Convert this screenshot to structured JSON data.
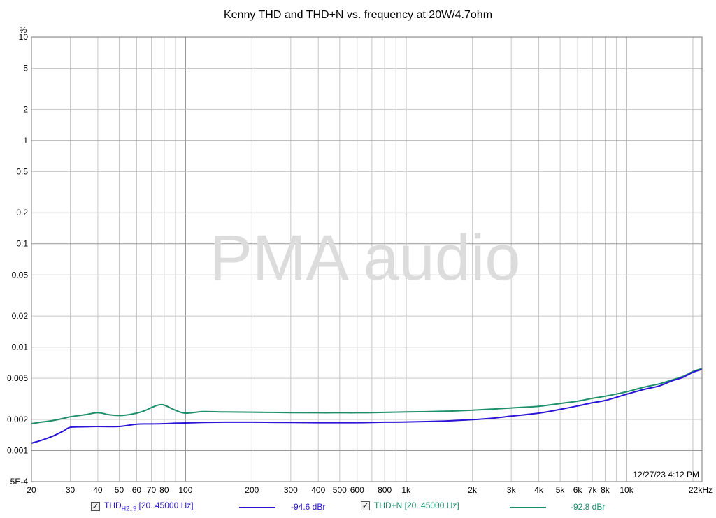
{
  "chart_data": {
    "type": "line",
    "title": "Kenny THD and THD+N vs. frequency at 20W/4.7ohm",
    "ylabel": "%",
    "xunit": "kHz",
    "xscale": "log",
    "yscale": "log",
    "xlim": [
      20,
      22000
    ],
    "ylim": [
      0.0005,
      10
    ],
    "grid": true,
    "xticks": [
      {
        "v": 20,
        "label": "20"
      },
      {
        "v": 30,
        "label": "30"
      },
      {
        "v": 40,
        "label": "40"
      },
      {
        "v": 50,
        "label": "50"
      },
      {
        "v": 60,
        "label": "60"
      },
      {
        "v": 70,
        "label": "70"
      },
      {
        "v": 80,
        "label": "80"
      },
      {
        "v": 100,
        "label": "100"
      },
      {
        "v": 200,
        "label": "200"
      },
      {
        "v": 300,
        "label": "300"
      },
      {
        "v": 400,
        "label": "400"
      },
      {
        "v": 500,
        "label": "500"
      },
      {
        "v": 600,
        "label": "600"
      },
      {
        "v": 800,
        "label": "800"
      },
      {
        "v": 1000,
        "label": "1k"
      },
      {
        "v": 2000,
        "label": "2k"
      },
      {
        "v": 3000,
        "label": "3k"
      },
      {
        "v": 4000,
        "label": "4k"
      },
      {
        "v": 5000,
        "label": "5k"
      },
      {
        "v": 6000,
        "label": "6k"
      },
      {
        "v": 7000,
        "label": "7k"
      },
      {
        "v": 8000,
        "label": "8k"
      },
      {
        "v": 10000,
        "label": "10k"
      },
      {
        "v": 22000,
        "label": "22kHz"
      }
    ],
    "yticks": [
      {
        "v": 10,
        "label": "10"
      },
      {
        "v": 5,
        "label": "5"
      },
      {
        "v": 2,
        "label": "2"
      },
      {
        "v": 1,
        "label": "1"
      },
      {
        "v": 0.5,
        "label": "0.5"
      },
      {
        "v": 0.2,
        "label": "0.2"
      },
      {
        "v": 0.1,
        "label": "0.1"
      },
      {
        "v": 0.05,
        "label": "0.05"
      },
      {
        "v": 0.02,
        "label": "0.02"
      },
      {
        "v": 0.01,
        "label": "0.01"
      },
      {
        "v": 0.005,
        "label": "0.005"
      },
      {
        "v": 0.002,
        "label": "0.002"
      },
      {
        "v": 0.001,
        "label": "0.001"
      },
      {
        "v": 0.0005,
        "label": "5E-4"
      }
    ],
    "series": [
      {
        "name": "THD H2..9 [20..45000 Hz]",
        "color": "#2a14d6",
        "x": [
          20,
          22,
          25,
          28,
          30,
          35,
          40,
          50,
          60,
          70,
          80,
          90,
          100,
          120,
          150,
          200,
          300,
          400,
          500,
          600,
          700,
          800,
          1000,
          1500,
          2000,
          2500,
          3000,
          4000,
          5000,
          6000,
          7000,
          8000,
          10000,
          12000,
          14000,
          16000,
          18000,
          20000,
          22000
        ],
        "y": [
          0.00118,
          0.00125,
          0.00138,
          0.00155,
          0.00168,
          0.0017,
          0.00171,
          0.00171,
          0.0018,
          0.00181,
          0.00182,
          0.00184,
          0.00185,
          0.00187,
          0.00188,
          0.00188,
          0.00187,
          0.00186,
          0.00186,
          0.00186,
          0.00187,
          0.00188,
          0.00189,
          0.00193,
          0.00199,
          0.00206,
          0.00215,
          0.0023,
          0.0025,
          0.0027,
          0.0029,
          0.00305,
          0.0035,
          0.0039,
          0.0042,
          0.0047,
          0.0051,
          0.0057,
          0.0061
        ]
      },
      {
        "name": "THD+N [20..45000 Hz]",
        "color": "#1d8f6a",
        "x": [
          20,
          22,
          25,
          28,
          30,
          35,
          40,
          45,
          50,
          55,
          60,
          65,
          70,
          75,
          80,
          90,
          100,
          120,
          150,
          200,
          300,
          400,
          500,
          600,
          700,
          800,
          1000,
          1500,
          2000,
          2500,
          3000,
          4000,
          5000,
          6000,
          7000,
          8000,
          10000,
          12000,
          14000,
          16000,
          18000,
          20000,
          22000
        ],
        "y": [
          0.00182,
          0.00188,
          0.00195,
          0.00205,
          0.00212,
          0.00222,
          0.00232,
          0.00222,
          0.00218,
          0.00222,
          0.0023,
          0.00242,
          0.0026,
          0.00275,
          0.00275,
          0.00245,
          0.0023,
          0.00238,
          0.00236,
          0.00235,
          0.00233,
          0.00232,
          0.00232,
          0.00232,
          0.00233,
          0.00234,
          0.00236,
          0.0024,
          0.00246,
          0.00252,
          0.00258,
          0.00268,
          0.00285,
          0.003,
          0.0032,
          0.00335,
          0.0037,
          0.0041,
          0.0044,
          0.0048,
          0.0052,
          0.0058,
          0.0062
        ]
      }
    ],
    "timestamp": "12/27/23 4:12 PM",
    "watermark": "PMA audio"
  },
  "legend": {
    "items": [
      {
        "check": "✓",
        "name_main": "THD",
        "name_sub": "H2..9",
        "name_range": " [20..45000 Hz]",
        "value": "-94.6 dBr",
        "color": "#2a14d6"
      },
      {
        "check": "✓",
        "name_main": "THD+N [20..45000 Hz]",
        "value": "-92.8 dBr",
        "color": "#1d8f6a"
      }
    ]
  }
}
